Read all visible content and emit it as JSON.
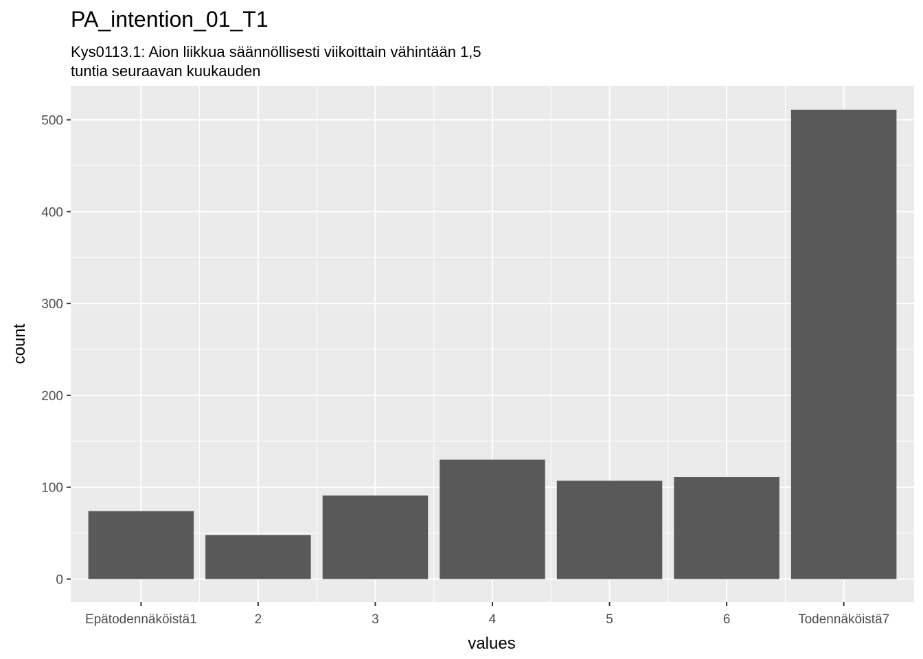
{
  "chart_data": {
    "type": "bar",
    "title": "PA_intention_01_T1",
    "subtitle_lines": [
      "Kys0113.1: Aion liikkua säännöllisesti viikoittain vähintään 1,5",
      "tuntia seuraavan kuukauden"
    ],
    "xlabel": "values",
    "ylabel": "count",
    "categories": [
      "Epätodennäköistä1",
      "2",
      "3",
      "4",
      "5",
      "6",
      "Todennäköistä7"
    ],
    "values": [
      74,
      48,
      91,
      130,
      107,
      111,
      511
    ],
    "ylim": [
      -25,
      537
    ],
    "yticks": [
      0,
      100,
      200,
      300,
      400,
      500
    ],
    "grid": true,
    "bar_color": "#595959",
    "panel_color": "#ebebeb",
    "grid_color": "#ffffff"
  }
}
